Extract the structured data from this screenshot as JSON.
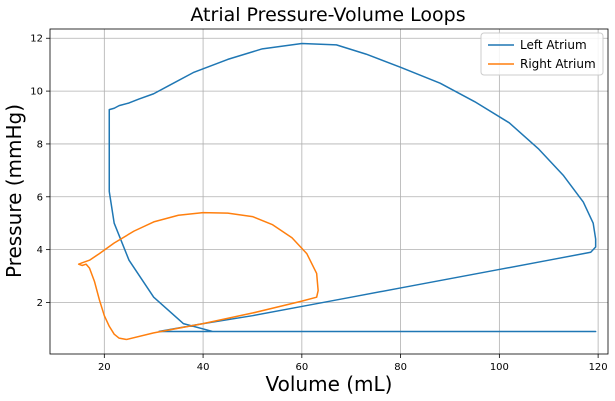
{
  "chart_data": {
    "type": "line",
    "title": "Atrial Pressure-Volume Loops",
    "xlabel": "Volume (mL)",
    "ylabel": "Pressure (mmHg)",
    "xlim": [
      9,
      122
    ],
    "ylim": [
      0.05,
      12.35
    ],
    "xticks": [
      20,
      40,
      60,
      80,
      100,
      120
    ],
    "yticks": [
      2,
      4,
      6,
      8,
      10,
      12
    ],
    "grid": true,
    "legend_position": "top-right",
    "series": [
      {
        "name": "Left Atrium",
        "color": "#1f77b4",
        "x": [
          31,
          40,
          50,
          60,
          70,
          80,
          90,
          100,
          110,
          118.5,
          119.5,
          119.5,
          119,
          117,
          113,
          108,
          102,
          95,
          88,
          80,
          73,
          67,
          60,
          52,
          45,
          38,
          33,
          30,
          27,
          25,
          23,
          22,
          21,
          21,
          21,
          22,
          25,
          30,
          36,
          42,
          48,
          54,
          60,
          66,
          71,
          77,
          83,
          89,
          94,
          98,
          101,
          103,
          105,
          106,
          107,
          108,
          108.5,
          109,
          109.5,
          110,
          110.5,
          111,
          111.3,
          111.6,
          111.8,
          112,
          112.2,
          112.4,
          112.6,
          112.8,
          113,
          113.2,
          113.5,
          114,
          115,
          116,
          117,
          118,
          119,
          119.5,
          119.5,
          119.3,
          119,
          118,
          117,
          114,
          110,
          105,
          100,
          95,
          88,
          82,
          74,
          66,
          58,
          50,
          42,
          35,
          31
        ],
        "y": [
          0.9,
          1.2,
          1.5,
          1.85,
          2.2,
          2.55,
          2.9,
          3.25,
          3.6,
          3.9,
          4.1,
          4.4,
          5.0,
          5.8,
          6.8,
          7.8,
          8.8,
          9.6,
          10.3,
          10.9,
          11.4,
          11.75,
          11.8,
          11.6,
          11.2,
          10.7,
          10.2,
          9.9,
          9.7,
          9.55,
          9.45,
          9.35,
          9.3,
          7.5,
          6.2,
          5.0,
          3.6,
          2.2,
          1.2,
          0.9,
          0.9,
          0.9,
          0.9,
          0.9,
          0.9,
          0.9,
          0.9,
          0.9,
          0.9,
          0.9,
          0.9,
          0.9,
          0.9,
          0.9,
          0.9,
          0.9,
          0.9,
          0.9,
          0.9,
          0.9,
          0.9,
          0.9,
          0.9,
          0.9,
          0.9,
          0.9,
          0.9,
          0.9,
          0.9,
          0.9,
          0.9,
          0.9,
          0.9,
          0.9,
          0.9,
          0.9,
          0.9,
          0.9,
          0.9,
          0.9,
          0.9,
          0.9,
          0.9,
          0.9,
          0.9,
          0.9,
          0.9,
          0.9,
          0.9,
          0.9,
          0.9,
          0.9,
          0.9,
          0.9,
          0.9,
          0.9,
          0.9,
          0.9,
          0.9
        ]
      },
      {
        "name": "Right Atrium",
        "color": "#ff7f0e",
        "x": [
          24.5,
          30,
          40,
          50,
          60,
          63,
          63.3,
          63,
          61,
          58,
          54,
          50,
          45,
          40,
          35,
          30,
          26,
          22,
          19,
          17,
          15.5,
          14.8,
          15.5,
          16.3,
          17,
          18,
          19,
          20,
          21,
          22,
          23,
          24.5
        ],
        "y": [
          0.6,
          0.85,
          1.2,
          1.6,
          2.05,
          2.2,
          2.45,
          3.1,
          3.85,
          4.45,
          4.95,
          5.25,
          5.38,
          5.4,
          5.3,
          5.05,
          4.7,
          4.25,
          3.85,
          3.6,
          3.5,
          3.45,
          3.4,
          3.45,
          3.3,
          2.8,
          2.1,
          1.5,
          1.1,
          0.8,
          0.65,
          0.6
        ]
      }
    ]
  }
}
